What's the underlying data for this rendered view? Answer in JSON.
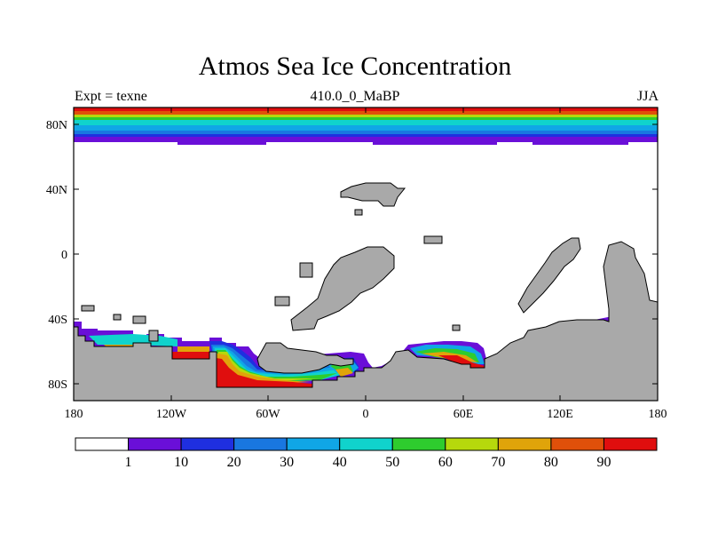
{
  "title": "Atmos Sea Ice Concentration",
  "left_string": "Expt = texne",
  "center_string": "410.0_0_MaBP",
  "right_string": "JJA",
  "lat_labels": [
    "80N",
    "40N",
    "0",
    "40S",
    "80S"
  ],
  "lon_labels": [
    "180",
    "120W",
    "60W",
    "0",
    "60E",
    "120E",
    "180"
  ],
  "colorbar": {
    "labels": [
      "1",
      "10",
      "20",
      "30",
      "40",
      "50",
      "60",
      "70",
      "80",
      "90"
    ],
    "colors": [
      "#ffffff",
      "#6a0fd8",
      "#1f2fe0",
      "#1977e0",
      "#10a6e6",
      "#10d3cc",
      "#2ecc2e",
      "#b6d80c",
      "#e0a40a",
      "#e0500a",
      "#e00e0e"
    ]
  },
  "colors": {
    "land": "#a9a9a9",
    "land_edge": "#000000"
  }
}
